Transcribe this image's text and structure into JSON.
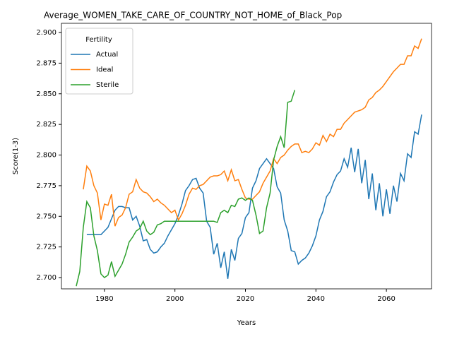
{
  "chart_data": {
    "type": "line",
    "title": "Average_WOMEN_TAKE_CARE_OF_COUNTRY_NOT_HOME_of_Black_Pop",
    "xlabel": "Years",
    "ylabel": "Score(1-3)",
    "legend_title": "Fertility",
    "legend": "upper left",
    "x": [
      1972,
      1973,
      1974,
      1975,
      1976,
      1977,
      1978,
      1979,
      1980,
      1981,
      1982,
      1983,
      1984,
      1985,
      1986,
      1987,
      1988,
      1989,
      1990,
      1991,
      1992,
      1993,
      1994,
      1995,
      1996,
      1997,
      1998,
      1999,
      2000,
      2001,
      2002,
      2003,
      2004,
      2005,
      2006,
      2007,
      2008,
      2009,
      2010,
      2011,
      2012,
      2013,
      2014,
      2015,
      2016,
      2017,
      2018,
      2019,
      2020,
      2021,
      2022,
      2023,
      2024,
      2025,
      2026,
      2027,
      2028,
      2029,
      2030,
      2031,
      2032,
      2033,
      2034,
      2035,
      2036,
      2037,
      2038,
      2039,
      2040,
      2041,
      2042,
      2043,
      2044,
      2045,
      2046,
      2047,
      2048,
      2049,
      2050,
      2051,
      2052,
      2053,
      2054,
      2055,
      2056,
      2057,
      2058,
      2059,
      2060,
      2061,
      2062,
      2063,
      2064,
      2065,
      2066,
      2067,
      2068,
      2069,
      2070
    ],
    "series": [
      {
        "name": "Actual",
        "color": "#1f77b4",
        "values": [
          null,
          null,
          null,
          2.735,
          2.735,
          2.735,
          2.735,
          2.735,
          2.738,
          2.741,
          2.748,
          2.755,
          2.758,
          2.758,
          2.757,
          2.757,
          2.747,
          2.75,
          2.742,
          2.73,
          2.731,
          2.723,
          2.72,
          2.721,
          2.725,
          2.728,
          2.734,
          2.739,
          2.744,
          2.751,
          2.76,
          2.771,
          2.775,
          2.78,
          2.781,
          2.773,
          2.769,
          2.746,
          2.741,
          2.719,
          2.728,
          2.708,
          2.721,
          2.699,
          2.723,
          2.714,
          2.732,
          2.736,
          2.749,
          2.753,
          2.773,
          2.779,
          2.789,
          2.793,
          2.797,
          2.793,
          2.789,
          2.774,
          2.769,
          2.747,
          2.738,
          2.722,
          2.721,
          2.711,
          2.714,
          2.716,
          2.72,
          2.726,
          2.734,
          2.747,
          2.754,
          2.766,
          2.77,
          2.778,
          2.784,
          2.787,
          2.797,
          2.79,
          2.806,
          2.786,
          2.805,
          2.777,
          2.796,
          2.764,
          2.785,
          2.755,
          2.777,
          2.75,
          2.772,
          2.752,
          2.775,
          2.762,
          2.785,
          2.779,
          2.801,
          2.798,
          2.819,
          2.817,
          2.833
        ]
      },
      {
        "name": "Ideal",
        "color": "#ff7f0e",
        "values": [
          null,
          null,
          2.772,
          2.791,
          2.787,
          2.775,
          2.769,
          2.747,
          2.76,
          2.759,
          2.768,
          2.742,
          2.749,
          2.751,
          2.757,
          2.768,
          2.77,
          2.78,
          2.773,
          2.77,
          2.769,
          2.766,
          2.762,
          2.764,
          2.761,
          2.759,
          2.756,
          2.753,
          2.755,
          2.747,
          2.752,
          2.759,
          2.768,
          2.773,
          2.772,
          2.775,
          2.776,
          2.779,
          2.782,
          2.783,
          2.783,
          2.784,
          2.787,
          2.779,
          2.788,
          2.779,
          2.78,
          2.772,
          2.765,
          2.764,
          2.764,
          2.767,
          2.77,
          2.777,
          2.782,
          2.787,
          2.797,
          2.793,
          2.798,
          2.8,
          2.804,
          2.807,
          2.809,
          2.809,
          2.802,
          2.803,
          2.802,
          2.805,
          2.81,
          2.808,
          2.816,
          2.811,
          2.817,
          2.815,
          2.821,
          2.821,
          2.826,
          2.829,
          2.832,
          2.835,
          2.836,
          2.837,
          2.839,
          2.845,
          2.847,
          2.851,
          2.853,
          2.856,
          2.86,
          2.864,
          2.868,
          2.871,
          2.874,
          2.874,
          2.881,
          2.881,
          2.889,
          2.887,
          2.895
        ]
      },
      {
        "name": "Sterile",
        "color": "#2ca02c",
        "values": [
          2.693,
          2.705,
          2.741,
          2.762,
          2.757,
          2.734,
          2.722,
          2.703,
          2.7,
          2.702,
          2.713,
          2.701,
          2.706,
          2.711,
          2.719,
          2.729,
          2.733,
          2.738,
          2.74,
          2.746,
          2.738,
          2.735,
          2.737,
          2.743,
          2.744,
          2.746,
          2.746,
          2.746,
          2.746,
          2.746,
          2.746,
          2.746,
          2.746,
          2.746,
          2.746,
          2.746,
          2.746,
          2.746,
          2.746,
          2.746,
          2.745,
          2.753,
          2.755,
          2.753,
          2.759,
          2.758,
          2.764,
          2.765,
          2.763,
          2.765,
          2.763,
          2.751,
          2.736,
          2.738,
          2.757,
          2.769,
          2.796,
          2.807,
          2.815,
          2.806,
          2.843,
          2.844,
          2.853,
          null,
          null,
          null,
          null,
          null,
          null,
          null,
          null,
          null,
          null,
          null,
          null,
          null,
          null,
          null,
          null,
          null,
          null,
          null,
          null,
          null,
          null,
          null,
          null,
          null,
          null,
          null,
          null,
          null,
          null,
          null,
          null,
          null,
          null,
          null,
          null
        ]
      }
    ],
    "xlim": [
      1967.8,
      2072.8
    ],
    "xticks": [
      1980,
      2000,
      2020,
      2040,
      2060
    ],
    "ylim": [
      2.6908,
      2.9075
    ],
    "yticks": [
      {
        "value": 2.7,
        "label": "2.700"
      },
      {
        "value": 2.725,
        "label": "2.725"
      },
      {
        "value": 2.75,
        "label": "2.750"
      },
      {
        "value": 2.775,
        "label": "2.775"
      },
      {
        "value": 2.8,
        "label": "2.800"
      },
      {
        "value": 2.825,
        "label": "2.825"
      },
      {
        "value": 2.85,
        "label": "2.850"
      },
      {
        "value": 2.875,
        "label": "2.875"
      },
      {
        "value": 2.9,
        "label": "2.900"
      }
    ]
  }
}
